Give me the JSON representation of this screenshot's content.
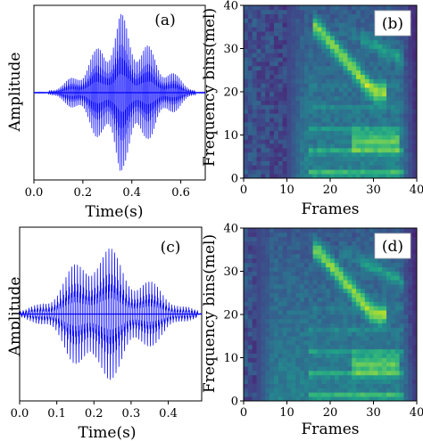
{
  "chart_data": [
    {
      "panel": "(a)",
      "type": "line",
      "xlabel": "Time(s)",
      "ylabel": "Amplitude",
      "xlim": [
        0.0,
        0.7
      ],
      "xticks": [
        "0.0",
        "0.2",
        "0.4",
        "0.6"
      ],
      "line_color": "#0000ff",
      "signal_start": 0.06,
      "signal_end": 0.66,
      "peak_time": 0.35,
      "peak_amplitude": 1.0
    },
    {
      "panel": "(b)",
      "type": "heatmap",
      "xlabel": "Frames",
      "ylabel": "Frequency bins(mel)",
      "xlim": [
        0,
        40
      ],
      "ylim": [
        0,
        40
      ],
      "xticks": [
        "0",
        "10",
        "20",
        "30",
        "40"
      ],
      "yticks": [
        "0",
        "10",
        "20",
        "30",
        "40"
      ],
      "colormap": "viridis",
      "energy_start_frame": 10,
      "formant_ridge_start": [
        17,
        35
      ],
      "formant_ridge_end": [
        30,
        20
      ]
    },
    {
      "panel": "(c)",
      "type": "line",
      "xlabel": "Time(s)",
      "ylabel": "Amplitude",
      "xlim": [
        0.0,
        0.49
      ],
      "xticks": [
        "0.0",
        "0.1",
        "0.2",
        "0.3",
        "0.4"
      ],
      "line_color": "#0000ff",
      "signal_start": 0.0,
      "signal_end": 0.48,
      "peak_time": 0.2,
      "peak_amplitude": 1.0
    },
    {
      "panel": "(d)",
      "type": "heatmap",
      "xlabel": "Frames",
      "ylabel": "Frequency bins(mel)",
      "xlim": [
        0,
        40
      ],
      "ylim": [
        0,
        40
      ],
      "xticks": [
        "0",
        "10",
        "20",
        "30",
        "40"
      ],
      "yticks": [
        "0",
        "10",
        "20",
        "30",
        "40"
      ],
      "colormap": "viridis",
      "energy_start_frame": 3,
      "formant_ridge_start": [
        17,
        35
      ],
      "formant_ridge_end": [
        30,
        20
      ]
    }
  ]
}
